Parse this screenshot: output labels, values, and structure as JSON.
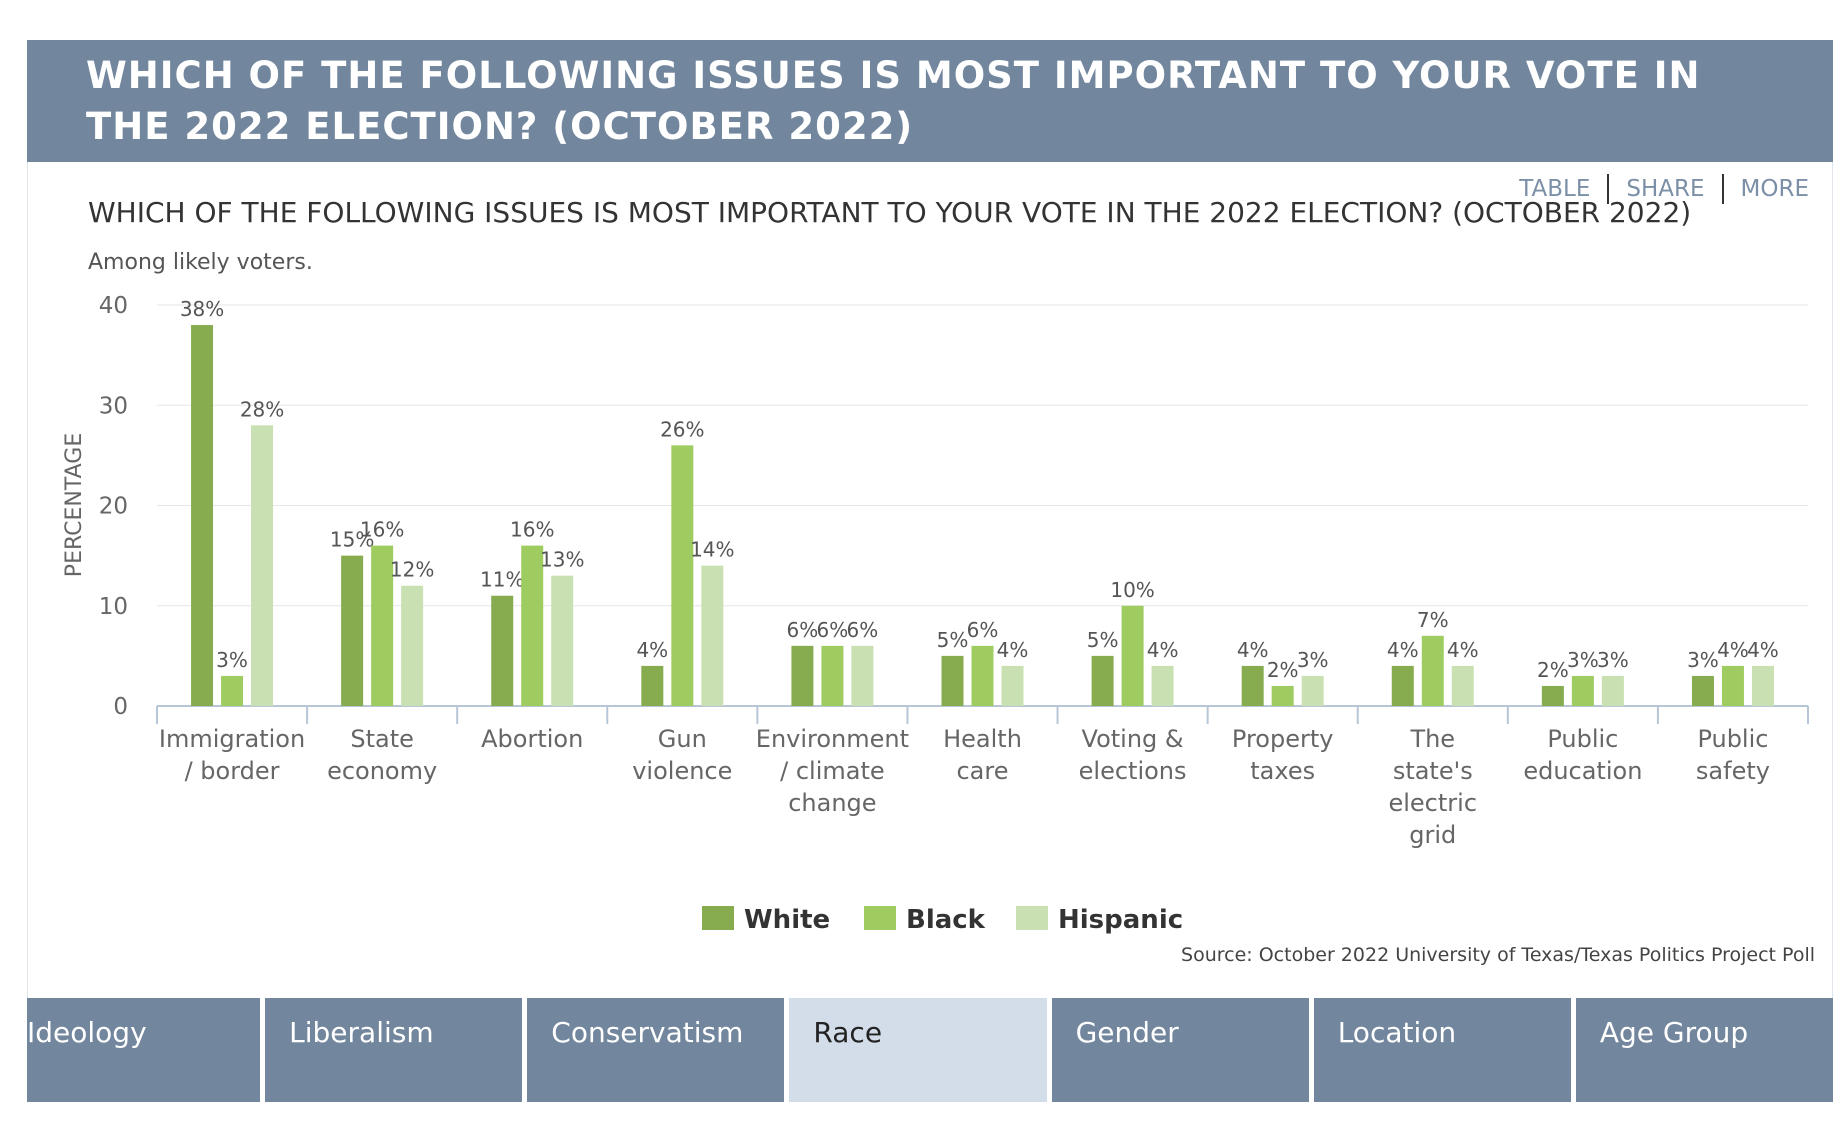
{
  "header": {
    "title": "WHICH OF THE FOLLOWING ISSUES IS MOST IMPORTANT TO YOUR VOTE IN THE 2022 ELECTION? (OCTOBER 2022)"
  },
  "links": {
    "table": "TABLE",
    "share": "SHARE",
    "more": "MORE"
  },
  "tabs": [
    "Ideology",
    "Liberalism",
    "Conservatism",
    "Race",
    "Gender",
    "Location",
    "Age Group"
  ],
  "active_tab": "Race",
  "source": "Source: October 2022 University of Texas/Texas Politics Project Poll",
  "colors": {
    "header": "#72869e",
    "white": "#86ac4f",
    "black": "#9fcc61",
    "hispanic": "#c9e0b2",
    "active_tab": "#d2dde9"
  },
  "chart_data": {
    "type": "bar",
    "title": "WHICH OF THE FOLLOWING ISSUES IS MOST IMPORTANT TO YOUR VOTE IN THE 2022 ELECTION? (OCTOBER 2022)",
    "subtitle": "Among likely voters.",
    "ylabel": "PERCENTAGE",
    "ylim": [
      0,
      40
    ],
    "yticks": [
      0,
      10,
      20,
      30,
      40
    ],
    "grid": true,
    "legend_position": "bottom",
    "categories": [
      [
        "Immigration",
        "/ border"
      ],
      [
        "State",
        "economy"
      ],
      [
        "Abortion"
      ],
      [
        "Gun",
        "violence"
      ],
      [
        "Environment",
        "/ climate",
        "change"
      ],
      [
        "Health",
        "care"
      ],
      [
        "Voting &",
        "elections"
      ],
      [
        "Property",
        "taxes"
      ],
      [
        "The",
        "state's",
        "electric",
        "grid"
      ],
      [
        "Public",
        "education"
      ],
      [
        "Public",
        "safety"
      ]
    ],
    "series": [
      {
        "name": "White",
        "color": "#86ac4f",
        "values": [
          38,
          15,
          11,
          4,
          6,
          5,
          5,
          4,
          4,
          2,
          3
        ]
      },
      {
        "name": "Black",
        "color": "#9fcc61",
        "values": [
          3,
          16,
          16,
          26,
          6,
          6,
          10,
          2,
          7,
          3,
          4
        ]
      },
      {
        "name": "Hispanic",
        "color": "#c9e0b2",
        "values": [
          28,
          12,
          13,
          14,
          6,
          4,
          4,
          3,
          4,
          3,
          4
        ]
      }
    ]
  }
}
